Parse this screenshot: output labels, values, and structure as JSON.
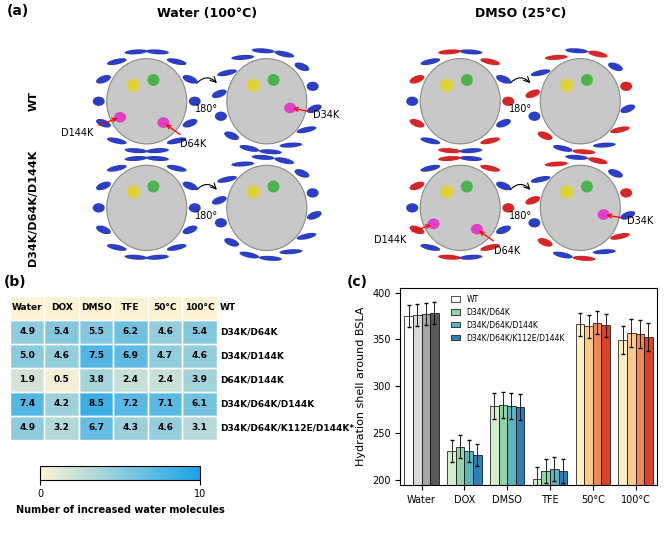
{
  "panel_a": {
    "label": "(a)",
    "columns": [
      "Water (100°C)",
      "DMSO (25°C)"
    ],
    "rows": [
      "WT",
      "D34K/D64K/D144K"
    ],
    "rotation_label": "180°",
    "mutation_labels": [
      [
        [
          [
            "D64K",
            "D144K"
          ],
          [
            "D34K"
          ]
        ],
        [
          [],
          []
        ]
      ],
      [
        [
          [],
          []
        ],
        [
          [
            "D64K",
            "D144K"
          ],
          [
            "D34K"
          ]
        ]
      ]
    ]
  },
  "chart_data": [
    {
      "type": "heatmap",
      "label": "(b)",
      "columns": [
        "Water",
        "DOX",
        "DMSO",
        "TFE",
        "50°C",
        "100°C"
      ],
      "header_row": "WT",
      "rows": [
        "D34K/D64K",
        "D34K/D144K",
        "D64K/D144K",
        "D34K/D64K/D144K",
        "D34K/D64K/K112E/D144K*"
      ],
      "cells": [
        [
          4.9,
          5.4,
          5.5,
          6.2,
          4.6,
          5.4
        ],
        [
          5.0,
          4.6,
          7.5,
          6.9,
          4.7,
          4.6
        ],
        [
          1.9,
          0.5,
          3.8,
          2.4,
          2.4,
          3.9
        ],
        [
          7.4,
          4.2,
          8.5,
          7.2,
          7.1,
          6.1
        ],
        [
          4.9,
          3.2,
          6.7,
          4.3,
          4.6,
          3.1
        ]
      ],
      "data_labels": true,
      "colorbar_label": "Number of increased water molecules",
      "colorbar_range": [
        0,
        10
      ],
      "colorbar_ticks": [
        0,
        10
      ],
      "colors": [
        "#fdf3d2",
        "#1aa3ea"
      ]
    },
    {
      "type": "bar",
      "label": "(c)",
      "y_label": "Hydration shell around BSLA",
      "categories": [
        "Water",
        "DOX",
        "DMSO",
        "TFE",
        "50°C",
        "100°C"
      ],
      "series": [
        {
          "name": "WT",
          "color": "#ffffff",
          "colors": [
            "#ffffff",
            "#d4eecb",
            "#d4eecb",
            "#d4eecb",
            "#fef0c2",
            "#fef0c2"
          ],
          "values": [
            375,
            231,
            279,
            201,
            366,
            349
          ],
          "errors": [
            12,
            12,
            14,
            13,
            12,
            15
          ]
        },
        {
          "name": "D34K/D64K",
          "color": "#93d3a8",
          "colors": [
            "#d9d9d9",
            "#93d3a8",
            "#93d3a8",
            "#93d3a8",
            "#fbc98a",
            "#fbc98a"
          ],
          "values": [
            376,
            236,
            280,
            210,
            364,
            357
          ],
          "errors": [
            12,
            12,
            14,
            13,
            12,
            15
          ]
        },
        {
          "name": "D34K/D64K/D144K",
          "color": "#5bb5bd",
          "colors": [
            "#a6a6a6",
            "#5bb5bd",
            "#5bb5bd",
            "#5bb5bd",
            "#f08a55",
            "#f08a55"
          ],
          "values": [
            377,
            231,
            279,
            212,
            368,
            356
          ],
          "errors": [
            12,
            12,
            14,
            13,
            12,
            15
          ]
        },
        {
          "name": "D34K/D64K/K112E/D144K",
          "color": "#2e7fb8",
          "colors": [
            "#595959",
            "#2e7fb8",
            "#2e7fb8",
            "#2e7fb8",
            "#d8432f",
            "#d8432f"
          ],
          "values": [
            378,
            227,
            278,
            210,
            365,
            353
          ],
          "errors": [
            12,
            12,
            14,
            13,
            12,
            15
          ]
        }
      ],
      "ylim": [
        195,
        405
      ],
      "yticks": [
        200,
        250,
        300,
        350,
        400
      ],
      "legend": "upper center",
      "grid": false
    }
  ]
}
